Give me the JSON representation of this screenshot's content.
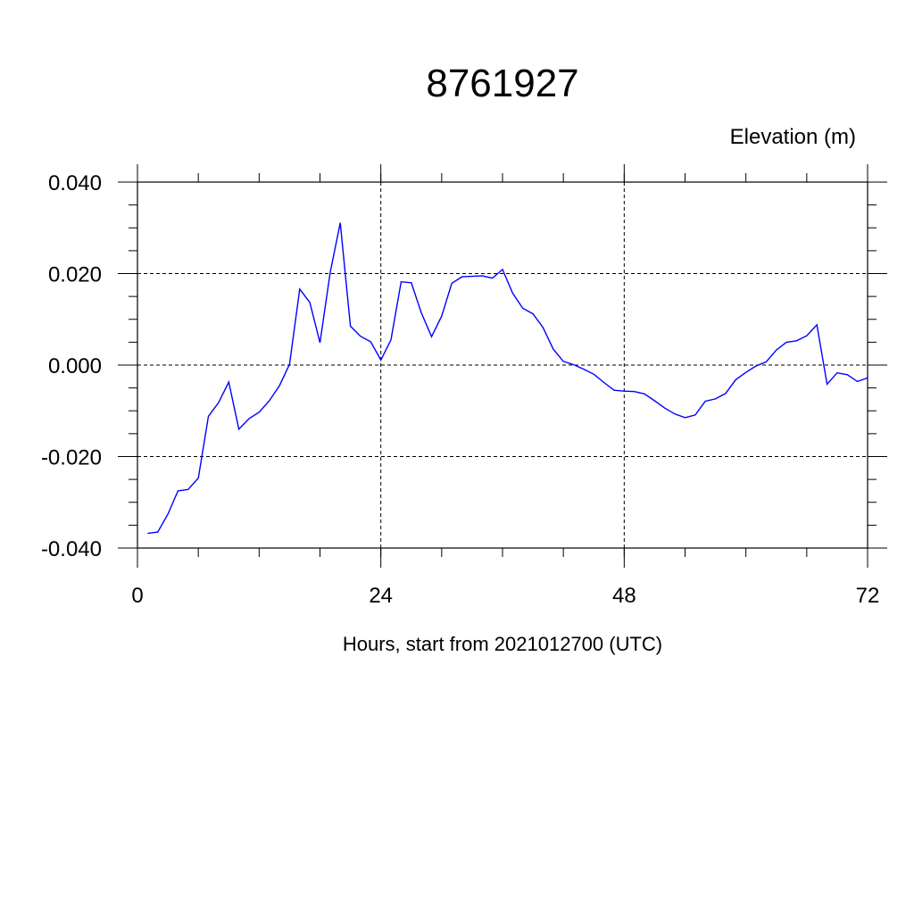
{
  "chart_data": {
    "type": "line",
    "title": "8761927",
    "ylabel": "Elevation (m)",
    "xlabel": "Hours, start from 2021012700 (UTC)",
    "xlim": [
      0,
      72
    ],
    "ylim": [
      -0.04,
      0.04
    ],
    "xticks": [
      0,
      24,
      48,
      72
    ],
    "xtick_labels": [
      "0",
      "24",
      "48",
      "72"
    ],
    "yticks": [
      -0.04,
      -0.02,
      0.0,
      0.02,
      0.04
    ],
    "ytick_labels": [
      "-0.040",
      "-0.020",
      "0.000",
      "0.020",
      "0.040"
    ],
    "grid": true,
    "series": [
      {
        "color": "#0000ff",
        "x": [
          1,
          2,
          3,
          4,
          5,
          6,
          7,
          8,
          9,
          10,
          11,
          12,
          13,
          14,
          15,
          16,
          17,
          18,
          19,
          20,
          21,
          22,
          23,
          24,
          25,
          26,
          27,
          28,
          29,
          30,
          31,
          32,
          33,
          34,
          35,
          36,
          37,
          38,
          39,
          40,
          41,
          42,
          43,
          44,
          45,
          46,
          47,
          48,
          49,
          50,
          51,
          52,
          53,
          54,
          55,
          56,
          57,
          58,
          59,
          60,
          61,
          62,
          63,
          64,
          65,
          66,
          67,
          68,
          69,
          70,
          71,
          72
        ],
        "y": [
          -0.0368,
          -0.0365,
          -0.0326,
          -0.0275,
          -0.0272,
          -0.0247,
          -0.0112,
          -0.0082,
          -0.0037,
          -0.014,
          -0.0117,
          -0.0103,
          -0.0078,
          -0.0045,
          0.0002,
          0.0166,
          0.0137,
          0.0049,
          0.0202,
          0.0311,
          0.0085,
          0.0063,
          0.0051,
          0.0011,
          0.0055,
          0.0182,
          0.018,
          0.0114,
          0.0062,
          0.0107,
          0.0179,
          0.0193,
          0.0194,
          0.0195,
          0.019,
          0.0209,
          0.0157,
          0.0124,
          0.0112,
          0.0082,
          0.0035,
          0.0008,
          0.0001,
          -0.0009,
          -0.002,
          -0.0038,
          -0.0055,
          -0.0057,
          -0.0058,
          -0.0063,
          -0.0078,
          -0.0094,
          -0.0107,
          -0.0115,
          -0.0109,
          -0.0079,
          -0.0074,
          -0.0062,
          -0.0032,
          -0.0016,
          -0.0002,
          0.0007,
          0.0033,
          0.005,
          0.0053,
          0.0064,
          0.0088,
          -0.0042,
          -0.0017,
          -0.0021,
          -0.0036,
          -0.0028
        ]
      }
    ]
  }
}
